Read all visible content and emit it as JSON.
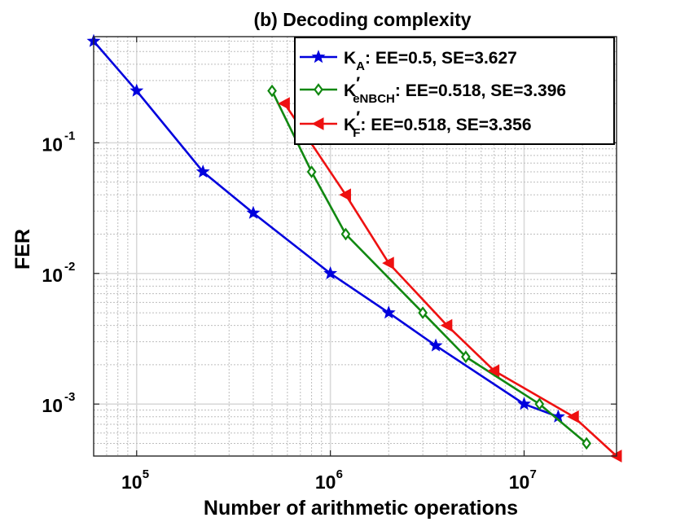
{
  "chart_data": {
    "type": "line",
    "title": "(b) Decoding complexity",
    "xlabel": "Number of arithmetic operations",
    "ylabel": "FER",
    "xscale": "log",
    "yscale": "log",
    "xlim": [
      60000,
      30000000
    ],
    "ylim": [
      0.0004,
      0.65
    ],
    "grid": "major and minor",
    "legend_position": "top-right",
    "x_ticks": [
      {
        "value": 100000,
        "base": "10",
        "exp": "5"
      },
      {
        "value": 1000000,
        "base": "10",
        "exp": "6"
      },
      {
        "value": 10000000,
        "base": "10",
        "exp": "7"
      }
    ],
    "y_ticks": [
      {
        "value": 0.1,
        "base": "10",
        "exp": "-1"
      },
      {
        "value": 0.01,
        "base": "10",
        "exp": "-2"
      },
      {
        "value": 0.001,
        "base": "10",
        "exp": "-3"
      }
    ],
    "series": [
      {
        "name": "K_A: EE=0.5, SE=3.627",
        "label_main": "K",
        "label_sub": "A",
        "label_prime": "",
        "label_rest": ": EE=0.5, SE=3.627",
        "color": "#0000dd",
        "marker": "star",
        "x": [
          60000,
          100000,
          220000,
          400000,
          1000000,
          2000000,
          3500000,
          10000000,
          15000000
        ],
        "y": [
          0.6,
          0.25,
          0.06,
          0.029,
          0.01,
          0.005,
          0.0028,
          0.001,
          0.0008
        ]
      },
      {
        "name": "K'_eNBCH: EE=0.518, SE=3.396",
        "label_main": "K",
        "label_sub": "eNBCH",
        "label_prime": "′",
        "label_rest": ": EE=0.518, SE=3.396",
        "color": "#118811",
        "marker": "diamond",
        "x": [
          500000,
          800000,
          1200000,
          3000000,
          5000000,
          12000000,
          21000000
        ],
        "y": [
          0.25,
          0.06,
          0.02,
          0.005,
          0.0023,
          0.001,
          0.0005
        ]
      },
      {
        "name": "K'_F: EE=0.518, SE=3.356",
        "label_main": "K",
        "label_sub": "F",
        "label_prime": "′",
        "label_rest": ": EE=0.518, SE=3.356",
        "color": "#ee1111",
        "marker": "triangle-left",
        "x": [
          580000,
          1200000,
          2000000,
          4000000,
          7000000,
          18000000,
          30000000
        ],
        "y": [
          0.2,
          0.04,
          0.012,
          0.004,
          0.0018,
          0.0008,
          0.0004
        ]
      }
    ]
  }
}
